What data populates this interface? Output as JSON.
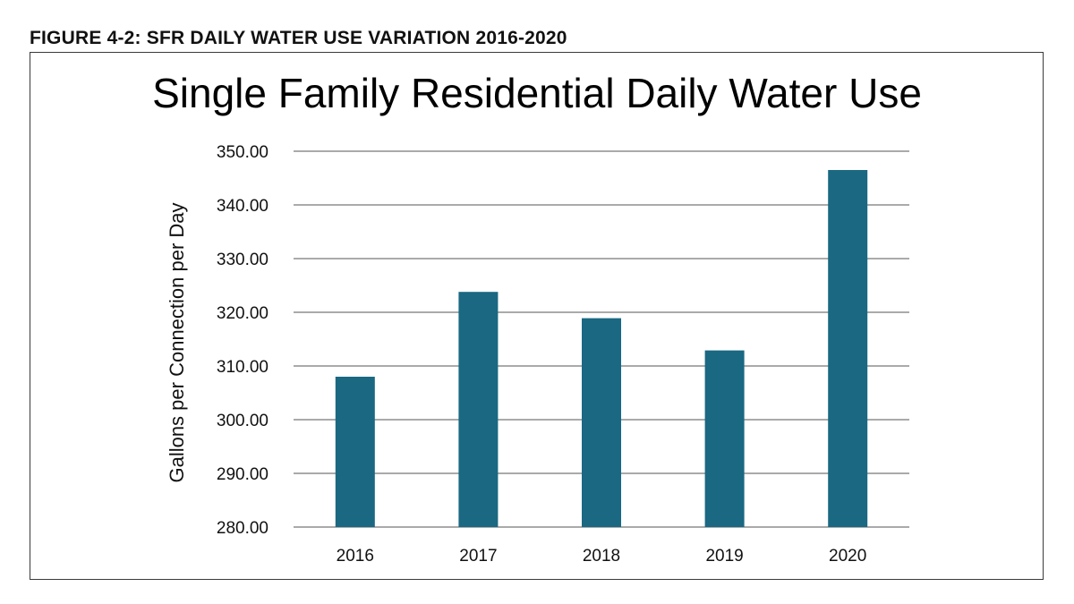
{
  "figure_caption": "FIGURE 4-2: SFR DAILY WATER USE VARIATION 2016-2020",
  "colors": {
    "bar": "#1a6882",
    "gridline": "#555555",
    "frame": "#3a3a3a"
  },
  "chart_data": {
    "type": "bar",
    "title": "Single Family Residential Daily Water Use",
    "xlabel": "",
    "ylabel": "Gallons per Connection per Day",
    "categories": [
      "2016",
      "2017",
      "2018",
      "2019",
      "2020"
    ],
    "values": [
      308.0,
      323.8,
      318.9,
      312.9,
      346.5
    ],
    "ylim": [
      280,
      350
    ],
    "yticks": [
      "280.00",
      "290.00",
      "300.00",
      "310.00",
      "320.00",
      "330.00",
      "340.00",
      "350.00"
    ],
    "ytick_values": [
      280,
      290,
      300,
      310,
      320,
      330,
      340,
      350
    ],
    "grid": true,
    "legend": "none"
  }
}
